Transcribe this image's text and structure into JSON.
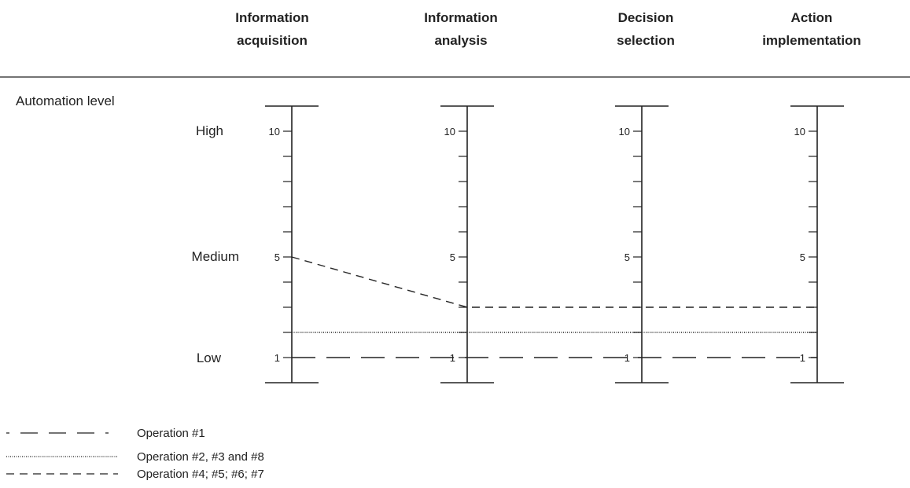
{
  "stages": [
    {
      "line1": "Information",
      "line2": "acquisition"
    },
    {
      "line1": "Information",
      "line2": "analysis"
    },
    {
      "line1": "Decision",
      "line2": "selection"
    },
    {
      "line1": "Action",
      "line2": "implementation"
    }
  ],
  "row_title": "Automation level",
  "level_names": [
    {
      "label": "High",
      "level": 10
    },
    {
      "label": "Medium",
      "level": 5
    },
    {
      "label": "Low",
      "level": 1
    }
  ],
  "scale": {
    "min": 0,
    "max": 11,
    "tick_step": 1
  },
  "tick_labels": [
    {
      "stage": 0,
      "levels": [
        10,
        5,
        1
      ]
    },
    {
      "stage": 1,
      "levels": [
        10,
        5,
        1
      ]
    },
    {
      "stage": 2,
      "levels": [
        10,
        5,
        1
      ]
    },
    {
      "stage": 3,
      "levels": [
        10,
        5,
        1
      ]
    }
  ],
  "profiles": [
    {
      "label": "Operation #1",
      "style": "long-dash",
      "levels": [
        1,
        1,
        1,
        1
      ]
    },
    {
      "label": "Operation #2, #3 and #8",
      "style": "dotted",
      "levels": [
        2,
        2,
        2,
        2
      ]
    },
    {
      "label": "Operation #4; #5; #6; #7",
      "style": "short-dash",
      "levels": [
        5,
        3,
        3,
        3
      ]
    }
  ],
  "colors": {
    "ink": "#222222",
    "background": "#ffffff"
  }
}
